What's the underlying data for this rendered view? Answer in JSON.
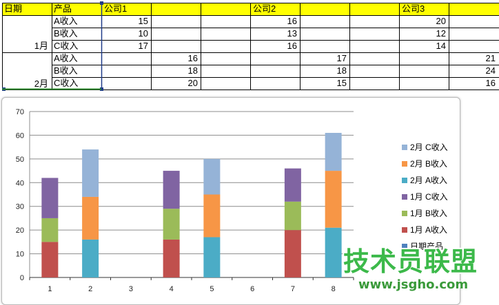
{
  "sheet": {
    "headers": {
      "date": "日期",
      "product": "产品",
      "company1": "公司1",
      "company2": "公司2",
      "company3": "公司3"
    },
    "months": [
      "1月",
      "2月"
    ],
    "products": [
      "A收入",
      "B收入",
      "C收入",
      "A收入",
      "B收入",
      "C收入"
    ],
    "company1": [
      "15",
      "10",
      "17",
      "16",
      "18",
      "20"
    ],
    "company2": [
      "16",
      "13",
      "16",
      "17",
      "18",
      "15"
    ],
    "company3": [
      "20",
      "12",
      "14",
      "21",
      "24",
      "16"
    ],
    "colors": {
      "header_fill": "#ffff00",
      "selection_border": "#1f3c88",
      "column_selection": "#2e8b2e"
    }
  },
  "chart_data": {
    "type": "bar",
    "stacked": true,
    "categories": [
      "1",
      "2",
      "3",
      "4",
      "5",
      "6",
      "7",
      "8"
    ],
    "ylim": [
      0,
      70
    ],
    "yticks": [
      "0",
      "10",
      "20",
      "30",
      "40",
      "50",
      "60",
      "70"
    ],
    "grid": true,
    "legend_position": "right",
    "series": [
      {
        "name": "日期产品",
        "color": "#4f81bd",
        "values": [
          0,
          0,
          0,
          0,
          0,
          0,
          0,
          0
        ]
      },
      {
        "name": "1月 A收入",
        "color": "#c0504d",
        "values": [
          15,
          0,
          0,
          16,
          0,
          0,
          20,
          0
        ]
      },
      {
        "name": "1月 B收入",
        "color": "#9bbb59",
        "values": [
          10,
          0,
          0,
          13,
          0,
          0,
          12,
          0
        ]
      },
      {
        "name": "1月 C收入",
        "color": "#8064a2",
        "values": [
          17,
          0,
          0,
          16,
          0,
          0,
          14,
          0
        ]
      },
      {
        "name": "2月 A收入",
        "color": "#4bacc6",
        "values": [
          0,
          16,
          0,
          0,
          17,
          0,
          0,
          21
        ]
      },
      {
        "name": "2月 B收入",
        "color": "#f79646",
        "values": [
          0,
          18,
          0,
          0,
          18,
          0,
          0,
          24
        ]
      },
      {
        "name": "2月 C收入",
        "color": "#95b3d7",
        "values": [
          0,
          20,
          0,
          0,
          15,
          0,
          0,
          16
        ]
      }
    ]
  },
  "watermark": {
    "text": "技术员联盟",
    "url": "www.jsgho.com"
  }
}
